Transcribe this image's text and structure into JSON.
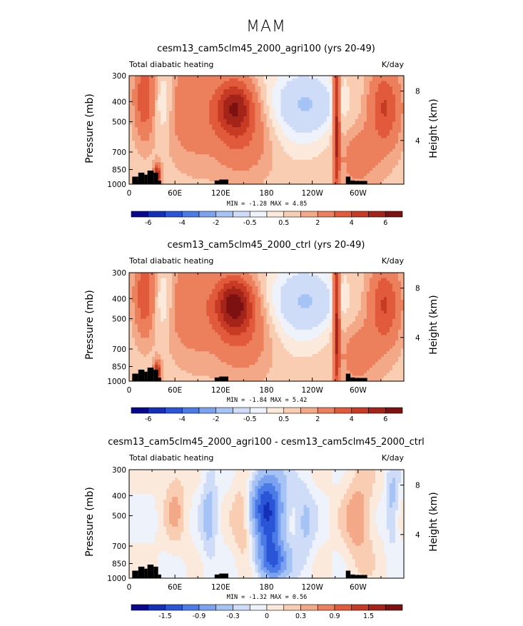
{
  "figure_title": "MAM",
  "chart_data": [
    {
      "type": "heatmap",
      "title": "cesm13_cam5clm45_2000_agri100 (yrs 20-49)",
      "left_label": "Total diabatic heating",
      "units": "K/day",
      "ylabel": "Pressure (mb)",
      "ylabel_right": "Height (km)",
      "y_ticks": [
        "300",
        "400",
        "500",
        "700",
        "850",
        "1000"
      ],
      "y_right_ticks": [
        "8",
        "4"
      ],
      "x_ticks": [
        "0",
        "60E",
        "120E",
        "180",
        "120W",
        "60W"
      ],
      "stats": "MIN =   -1.28   MAX =    4.85",
      "colorbar_labels": [
        "-6",
        "-4",
        "-2",
        "-0.5",
        "0.5",
        "2",
        "4",
        "6"
      ],
      "peak": 4.85,
      "trough": -1.28
    },
    {
      "type": "heatmap",
      "title": "cesm13_cam5clm45_2000_ctrl (yrs 20-49)",
      "left_label": "Total diabatic heating",
      "units": "K/day",
      "ylabel": "Pressure (mb)",
      "ylabel_right": "Height (km)",
      "y_ticks": [
        "300",
        "400",
        "500",
        "700",
        "850",
        "1000"
      ],
      "y_right_ticks": [
        "8",
        "4"
      ],
      "x_ticks": [
        "0",
        "60E",
        "120E",
        "180",
        "120W",
        "60W"
      ],
      "stats": "MIN =   -1.84   MAX =    5.42",
      "colorbar_labels": [
        "-6",
        "-4",
        "-2",
        "-0.5",
        "0.5",
        "2",
        "4",
        "6"
      ],
      "peak": 5.42,
      "trough": -1.84
    },
    {
      "type": "heatmap",
      "title": "cesm13_cam5clm45_2000_agri100 - cesm13_cam5clm45_2000_ctrl",
      "left_label": "Total diabatic heating",
      "units": "K/day",
      "ylabel": "Pressure (mb)",
      "ylabel_right": "Height (km)",
      "y_ticks": [
        "300",
        "400",
        "500",
        "700",
        "850",
        "1000"
      ],
      "y_right_ticks": [
        "8",
        "4"
      ],
      "x_ticks": [
        "0",
        "60E",
        "120E",
        "180",
        "120W",
        "60W"
      ],
      "stats": "MIN =   -1.32   MAX =    0.56",
      "colorbar_labels": [
        "-1.5",
        "-0.9",
        "-0.3",
        "0",
        "0.3",
        "0.9",
        "1.5"
      ],
      "peak": 0.56,
      "trough": -1.32
    }
  ],
  "colors": {
    "colorbar": [
      "#08088f",
      "#1530b8",
      "#2a55d6",
      "#4a7be6",
      "#7aa2f0",
      "#a6c3f6",
      "#cfdcf8",
      "#eef2fb",
      "#fbe9dc",
      "#f8cdb2",
      "#f3a987",
      "#ec7f5c",
      "#e05a3b",
      "#c73a24",
      "#a5241a",
      "#7d1010"
    ],
    "land": "#000000"
  }
}
